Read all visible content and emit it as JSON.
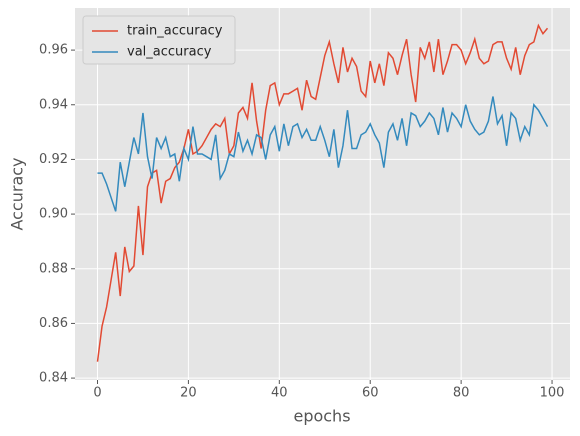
{
  "chart_data": {
    "type": "line",
    "x_label": "epochs",
    "y_label": "Accuracy",
    "x": [
      0,
      1,
      2,
      3,
      4,
      5,
      6,
      7,
      8,
      9,
      10,
      11,
      12,
      13,
      14,
      15,
      16,
      17,
      18,
      19,
      20,
      21,
      22,
      23,
      24,
      25,
      26,
      27,
      28,
      29,
      30,
      31,
      32,
      33,
      34,
      35,
      36,
      37,
      38,
      39,
      40,
      41,
      42,
      43,
      44,
      45,
      46,
      47,
      48,
      49,
      50,
      51,
      52,
      53,
      54,
      55,
      56,
      57,
      58,
      59,
      60,
      61,
      62,
      63,
      64,
      65,
      66,
      67,
      68,
      69,
      70,
      71,
      72,
      73,
      74,
      75,
      76,
      77,
      78,
      79,
      80,
      81,
      82,
      83,
      84,
      85,
      86,
      87,
      88,
      89,
      90,
      91,
      92,
      93,
      94,
      95,
      96,
      97,
      98,
      99
    ],
    "series": [
      {
        "name": "train_accuracy",
        "color": "#E24A33",
        "values": [
          0.846,
          0.859,
          0.866,
          0.876,
          0.886,
          0.87,
          0.888,
          0.879,
          0.881,
          0.903,
          0.885,
          0.91,
          0.915,
          0.916,
          0.904,
          0.912,
          0.913,
          0.917,
          0.919,
          0.924,
          0.931,
          0.922,
          0.923,
          0.925,
          0.928,
          0.931,
          0.933,
          0.932,
          0.935,
          0.922,
          0.925,
          0.937,
          0.939,
          0.935,
          0.948,
          0.934,
          0.924,
          0.938,
          0.947,
          0.948,
          0.94,
          0.944,
          0.944,
          0.945,
          0.946,
          0.938,
          0.949,
          0.943,
          0.942,
          0.95,
          0.958,
          0.963,
          0.955,
          0.948,
          0.961,
          0.952,
          0.957,
          0.954,
          0.945,
          0.943,
          0.956,
          0.948,
          0.955,
          0.947,
          0.959,
          0.957,
          0.951,
          0.958,
          0.964,
          0.951,
          0.941,
          0.961,
          0.957,
          0.963,
          0.952,
          0.964,
          0.951,
          0.956,
          0.962,
          0.962,
          0.96,
          0.955,
          0.959,
          0.964,
          0.957,
          0.955,
          0.956,
          0.962,
          0.963,
          0.963,
          0.957,
          0.953,
          0.961,
          0.951,
          0.958,
          0.962,
          0.963,
          0.969,
          0.966,
          0.968
        ]
      },
      {
        "name": "val_accuracy",
        "color": "#348ABD",
        "values": [
          0.915,
          0.915,
          0.911,
          0.906,
          0.901,
          0.919,
          0.91,
          0.919,
          0.928,
          0.922,
          0.937,
          0.921,
          0.913,
          0.928,
          0.924,
          0.928,
          0.921,
          0.922,
          0.912,
          0.924,
          0.92,
          0.932,
          0.922,
          0.922,
          0.921,
          0.92,
          0.929,
          0.913,
          0.916,
          0.922,
          0.921,
          0.93,
          0.923,
          0.927,
          0.922,
          0.929,
          0.928,
          0.92,
          0.929,
          0.932,
          0.923,
          0.933,
          0.925,
          0.932,
          0.933,
          0.928,
          0.931,
          0.927,
          0.927,
          0.932,
          0.927,
          0.921,
          0.931,
          0.917,
          0.925,
          0.938,
          0.924,
          0.924,
          0.929,
          0.93,
          0.933,
          0.929,
          0.926,
          0.917,
          0.93,
          0.933,
          0.927,
          0.935,
          0.925,
          0.937,
          0.936,
          0.932,
          0.934,
          0.937,
          0.935,
          0.929,
          0.939,
          0.93,
          0.937,
          0.935,
          0.932,
          0.94,
          0.934,
          0.931,
          0.929,
          0.93,
          0.934,
          0.943,
          0.933,
          0.936,
          0.925,
          0.937,
          0.935,
          0.927,
          0.932,
          0.929,
          0.94,
          0.938,
          0.935,
          0.932
        ]
      }
    ],
    "xlim": [
      -4.95,
      103.95
    ],
    "xticks": [
      0,
      20,
      40,
      60,
      80,
      100
    ],
    "ylim": [
      0.8393,
      0.9754
    ],
    "yticks": [
      0.84,
      0.86,
      0.88,
      {
        "value": 0.9,
        "label": "0.90"
      },
      0.92,
      0.94,
      0.96
    ],
    "grid": true,
    "legend": "upper left"
  }
}
